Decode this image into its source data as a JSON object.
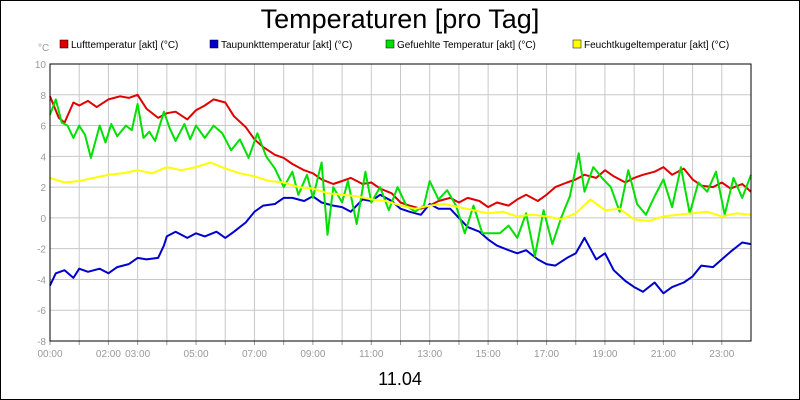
{
  "chart_data": {
    "type": "line",
    "title": "Temperaturen [pro Tag]",
    "ylabel": "°C",
    "xlabel": "11.04",
    "ylim": [
      -8,
      10
    ],
    "xlim": [
      0,
      24
    ],
    "grid": true,
    "legend_position": "top",
    "x_ticks": [
      {
        "h": 0,
        "label": "00:00"
      },
      {
        "h": 1,
        "label": ""
      },
      {
        "h": 2,
        "label": "02:00"
      },
      {
        "h": 3,
        "label": "03:00"
      },
      {
        "h": 4,
        "label": ""
      },
      {
        "h": 5,
        "label": "05:00"
      },
      {
        "h": 6,
        "label": ""
      },
      {
        "h": 7,
        "label": "07:00"
      },
      {
        "h": 8,
        "label": ""
      },
      {
        "h": 9,
        "label": "09:00"
      },
      {
        "h": 10,
        "label": ""
      },
      {
        "h": 11,
        "label": "11:00"
      },
      {
        "h": 12,
        "label": ""
      },
      {
        "h": 13,
        "label": "13:00"
      },
      {
        "h": 14,
        "label": ""
      },
      {
        "h": 15,
        "label": "15:00"
      },
      {
        "h": 16,
        "label": ""
      },
      {
        "h": 17,
        "label": "17:00"
      },
      {
        "h": 18,
        "label": ""
      },
      {
        "h": 19,
        "label": "19:00"
      },
      {
        "h": 20,
        "label": ""
      },
      {
        "h": 21,
        "label": "21:00"
      },
      {
        "h": 22,
        "label": ""
      },
      {
        "h": 23,
        "label": "23:00"
      }
    ],
    "y_ticks": [
      -8,
      -6,
      -4,
      -2,
      0,
      2,
      4,
      6,
      8,
      10
    ],
    "series": [
      {
        "name": "Lufttemperatur [akt] (°C)",
        "color": "#e00000",
        "x": [
          0,
          0.3,
          0.5,
          0.8,
          1.0,
          1.3,
          1.6,
          2.0,
          2.4,
          2.7,
          3.0,
          3.3,
          3.7,
          4.0,
          4.3,
          4.7,
          5.0,
          5.3,
          5.6,
          6.0,
          6.3,
          6.7,
          7.0,
          7.3,
          7.7,
          8.0,
          8.3,
          8.7,
          9.0,
          9.3,
          9.7,
          10.0,
          10.3,
          10.7,
          11.0,
          11.3,
          11.7,
          12.0,
          12.3,
          12.7,
          13.0,
          13.3,
          13.7,
          14.0,
          14.3,
          14.7,
          15.0,
          15.3,
          15.7,
          16.0,
          16.3,
          16.7,
          17.0,
          17.3,
          17.7,
          18.0,
          18.3,
          18.7,
          19.0,
          19.3,
          19.7,
          20.0,
          20.3,
          20.7,
          21.0,
          21.3,
          21.7,
          22.0,
          22.3,
          22.7,
          23.0,
          23.3,
          23.7,
          24.0
        ],
        "values": [
          7.9,
          6.5,
          6.2,
          7.5,
          7.3,
          7.6,
          7.2,
          7.7,
          7.9,
          7.8,
          8.0,
          7.1,
          6.5,
          6.8,
          6.9,
          6.4,
          7.0,
          7.3,
          7.7,
          7.5,
          6.6,
          5.9,
          5.1,
          4.6,
          4.1,
          3.9,
          3.5,
          3.1,
          2.9,
          2.5,
          2.2,
          2.4,
          2.6,
          2.2,
          2.3,
          1.9,
          1.6,
          1.0,
          0.8,
          0.6,
          0.8,
          1.1,
          1.3,
          1.0,
          1.3,
          1.1,
          0.7,
          1.0,
          0.8,
          1.2,
          1.5,
          1.1,
          1.5,
          2.0,
          2.3,
          2.5,
          2.8,
          2.6,
          3.1,
          2.7,
          2.3,
          2.6,
          2.8,
          3.0,
          3.3,
          2.8,
          3.2,
          2.5,
          2.1,
          2.0,
          2.3,
          1.9,
          2.2,
          1.7
        ]
      },
      {
        "name": "Taupunkttemperatur [akt] (°C)",
        "color": "#0000cc",
        "x": [
          0,
          0.2,
          0.5,
          0.8,
          1.0,
          1.3,
          1.7,
          2.0,
          2.3,
          2.7,
          3.0,
          3.3,
          3.7,
          3.9,
          4.0,
          4.3,
          4.7,
          5.0,
          5.3,
          5.7,
          6.0,
          6.3,
          6.7,
          7.0,
          7.3,
          7.7,
          8.0,
          8.3,
          8.7,
          9.0,
          9.3,
          9.7,
          10.0,
          10.3,
          10.7,
          11.0,
          11.3,
          11.7,
          12.0,
          12.3,
          12.7,
          13.0,
          13.3,
          13.7,
          14.0,
          14.3,
          14.7,
          15.0,
          15.3,
          15.7,
          16.0,
          16.3,
          16.7,
          17.0,
          17.3,
          17.7,
          18.0,
          18.3,
          18.5,
          18.7,
          19.0,
          19.3,
          19.7,
          20.0,
          20.3,
          20.7,
          21.0,
          21.3,
          21.7,
          22.0,
          22.3,
          22.7,
          23.0,
          23.3,
          23.7,
          24.0
        ],
        "values": [
          -4.4,
          -3.6,
          -3.4,
          -3.9,
          -3.3,
          -3.5,
          -3.3,
          -3.6,
          -3.2,
          -3.0,
          -2.6,
          -2.7,
          -2.6,
          -1.8,
          -1.2,
          -0.9,
          -1.3,
          -1.0,
          -1.2,
          -0.9,
          -1.3,
          -0.9,
          -0.3,
          0.4,
          0.8,
          0.9,
          1.3,
          1.3,
          1.1,
          1.4,
          1.0,
          0.8,
          0.7,
          0.4,
          1.2,
          1.1,
          1.5,
          1.1,
          0.6,
          0.4,
          0.2,
          0.9,
          0.6,
          0.6,
          0.0,
          -0.6,
          -0.9,
          -1.4,
          -1.8,
          -2.1,
          -2.3,
          -2.1,
          -2.7,
          -3.0,
          -3.1,
          -2.6,
          -2.3,
          -1.3,
          -2.0,
          -2.7,
          -2.3,
          -3.4,
          -4.1,
          -4.5,
          -4.8,
          -4.2,
          -4.9,
          -4.5,
          -4.2,
          -3.8,
          -3.1,
          -3.2,
          -2.7,
          -2.2,
          -1.6,
          -1.7
        ]
      },
      {
        "name": "Gefuehlte Temperatur [akt] (°C)",
        "color": "#00e000",
        "x": [
          0,
          0.2,
          0.4,
          0.6,
          0.8,
          1.0,
          1.2,
          1.4,
          1.7,
          1.9,
          2.1,
          2.3,
          2.6,
          2.8,
          3.0,
          3.2,
          3.4,
          3.6,
          3.9,
          4.1,
          4.3,
          4.6,
          4.8,
          5.0,
          5.3,
          5.6,
          5.9,
          6.2,
          6.5,
          6.8,
          7.1,
          7.4,
          7.7,
          8.0,
          8.3,
          8.5,
          8.8,
          9.0,
          9.3,
          9.5,
          9.7,
          10.0,
          10.2,
          10.5,
          10.8,
          11.0,
          11.3,
          11.6,
          11.9,
          12.2,
          12.5,
          12.8,
          13.0,
          13.3,
          13.6,
          13.9,
          14.2,
          14.5,
          14.8,
          15.1,
          15.4,
          15.7,
          16.0,
          16.3,
          16.6,
          16.9,
          17.2,
          17.5,
          17.8,
          18.1,
          18.3,
          18.6,
          18.9,
          19.2,
          19.5,
          19.8,
          20.1,
          20.4,
          20.7,
          21.0,
          21.3,
          21.6,
          21.9,
          22.2,
          22.5,
          22.8,
          23.1,
          23.4,
          23.7,
          24.0
        ],
        "values": [
          6.7,
          7.7,
          6.2,
          6.0,
          5.2,
          6.0,
          5.4,
          3.9,
          6.0,
          4.9,
          6.1,
          5.3,
          6.0,
          5.7,
          7.4,
          5.2,
          5.6,
          5.0,
          6.9,
          5.8,
          5.0,
          6.1,
          5.1,
          6.0,
          5.2,
          6.0,
          5.5,
          4.4,
          5.1,
          3.9,
          5.5,
          4.0,
          3.2,
          2.0,
          3.0,
          1.5,
          2.8,
          1.3,
          3.6,
          -1.1,
          2.0,
          1.0,
          2.4,
          -0.4,
          3.0,
          1.0,
          2.0,
          0.5,
          2.0,
          0.8,
          0.4,
          0.8,
          2.4,
          1.2,
          1.8,
          0.8,
          -1.0,
          0.8,
          -1.0,
          -1.0,
          -1.0,
          -0.5,
          -1.3,
          0.3,
          -2.5,
          0.5,
          -1.7,
          0.0,
          1.4,
          4.2,
          1.7,
          3.3,
          2.6,
          2.0,
          0.4,
          3.1,
          0.9,
          0.2,
          1.4,
          2.5,
          0.7,
          3.3,
          0.3,
          2.3,
          1.7,
          3.0,
          0.2,
          2.6,
          1.3,
          2.8
        ]
      },
      {
        "name": "Feuchtkugeltemperatur [akt] (°C)",
        "color": "#ffff00",
        "x": [
          0,
          0.5,
          1.0,
          1.5,
          2.0,
          2.5,
          3.0,
          3.5,
          4.0,
          4.5,
          5.0,
          5.5,
          6.0,
          6.5,
          7.0,
          7.5,
          8.0,
          8.5,
          9.0,
          9.5,
          10.0,
          10.5,
          11.0,
          11.5,
          12.0,
          12.5,
          13.0,
          13.5,
          14.0,
          14.5,
          15.0,
          15.5,
          16.0,
          16.5,
          17.0,
          17.5,
          18.0,
          18.5,
          19.0,
          19.5,
          20.0,
          20.5,
          21.0,
          21.5,
          22.0,
          22.5,
          23.0,
          23.5,
          24.0
        ],
        "values": [
          2.6,
          2.3,
          2.4,
          2.6,
          2.8,
          2.9,
          3.1,
          2.9,
          3.3,
          3.1,
          3.3,
          3.6,
          3.2,
          2.9,
          2.7,
          2.4,
          2.3,
          2.0,
          1.9,
          1.6,
          1.5,
          1.4,
          1.2,
          1.1,
          0.8,
          0.6,
          0.8,
          0.9,
          0.7,
          0.5,
          0.3,
          0.4,
          0.1,
          0.2,
          0.1,
          -0.1,
          0.3,
          1.2,
          0.5,
          0.6,
          -0.1,
          -0.2,
          0.1,
          0.2,
          0.3,
          0.4,
          0.1,
          0.3,
          0.2
        ]
      }
    ]
  }
}
